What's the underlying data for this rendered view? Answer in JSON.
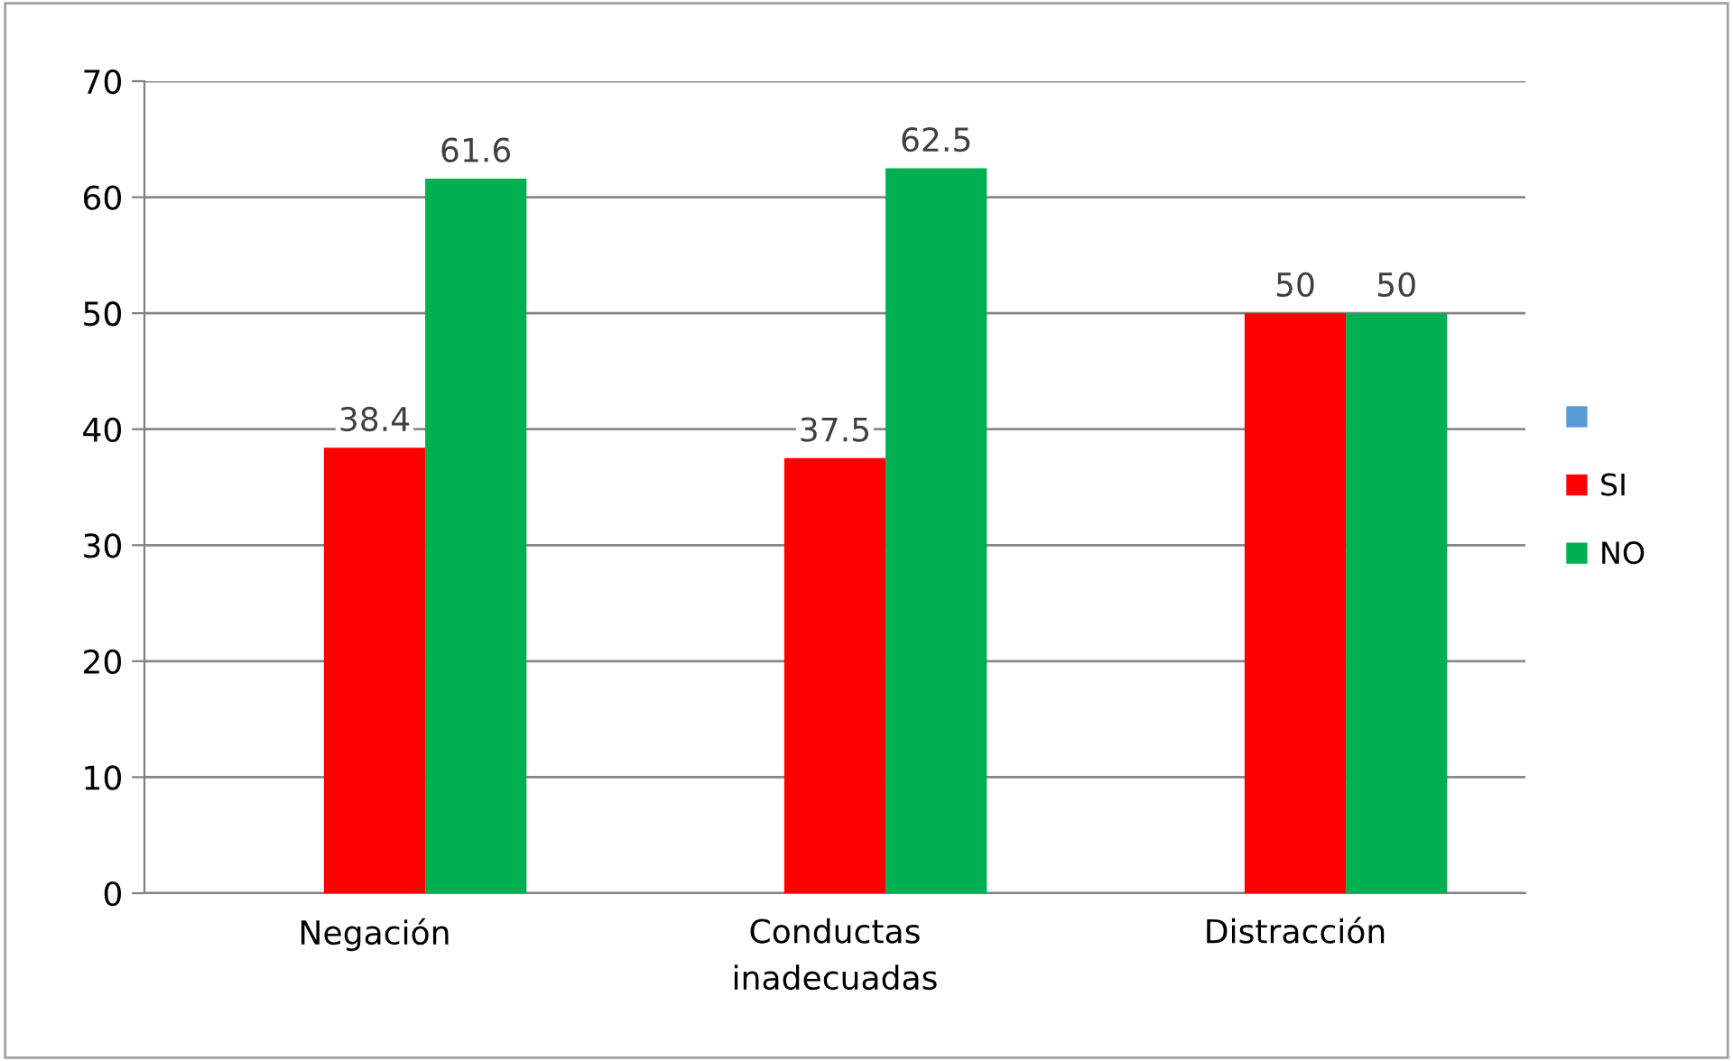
{
  "chart_data": {
    "type": "bar",
    "categories": [
      "Negación",
      "Conductas\ninadecuadas",
      "Distracción"
    ],
    "series": [
      {
        "color": "#5b9bd5",
        "values": [
          null,
          null,
          null
        ]
      },
      {
        "name": "SI",
        "color": "#ff0000",
        "values": [
          38.4,
          37.5,
          50
        ]
      },
      {
        "name": "NO",
        "color": "#00b050",
        "values": [
          61.6,
          62.5,
          50
        ]
      }
    ],
    "ylim": [
      0,
      70
    ],
    "yticks": [
      0,
      10,
      20,
      30,
      40,
      50,
      60,
      70
    ],
    "grid": "y",
    "legend": "right",
    "data_labels": true
  }
}
